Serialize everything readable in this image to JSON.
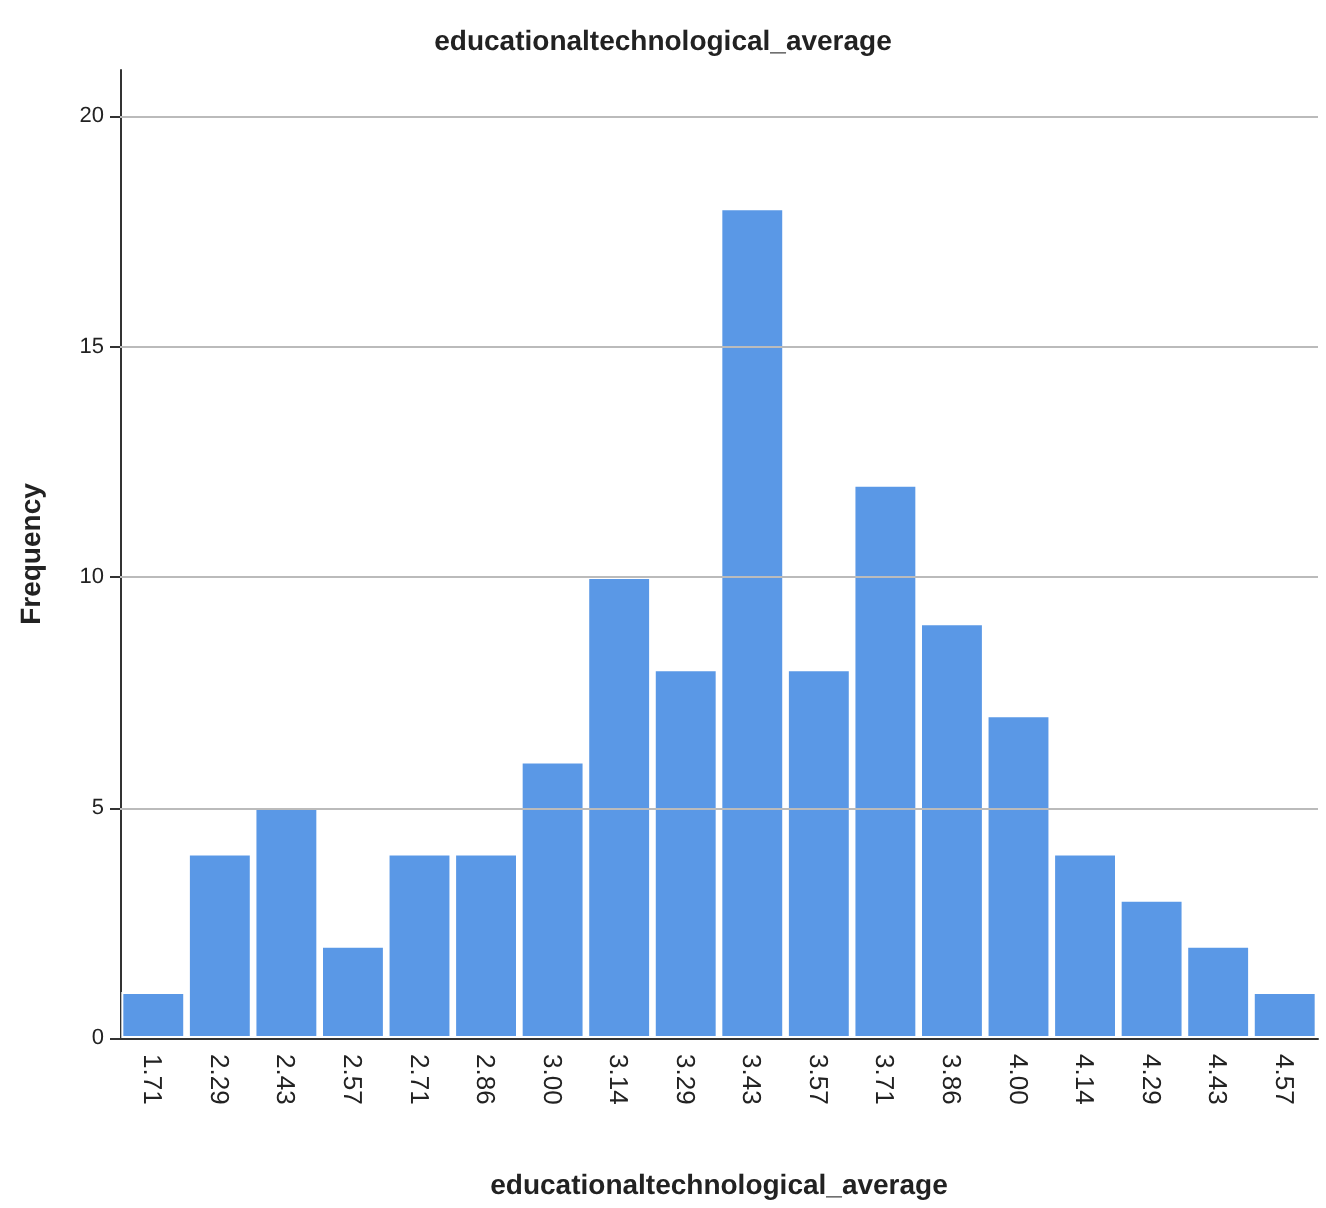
{
  "chart_data": {
    "type": "bar",
    "title": "educationaltechnological_average",
    "xlabel": "educationaltechnological_average",
    "ylabel": "Frequency",
    "categories": [
      "1.71",
      "2.29",
      "2.43",
      "2.57",
      "2.71",
      "2.86",
      "3.00",
      "3.14",
      "3.29",
      "3.43",
      "3.57",
      "3.71",
      "3.86",
      "4.00",
      "4.14",
      "4.29",
      "4.43",
      "4.57"
    ],
    "values": [
      1,
      4,
      5,
      2,
      4,
      4,
      6,
      10,
      8,
      18,
      8,
      12,
      9,
      7,
      4,
      3,
      2,
      1
    ],
    "color": "#5a98e6",
    "ylim": [
      0,
      21
    ],
    "yticks": [
      0,
      5,
      10,
      15,
      20
    ],
    "grid": "y"
  }
}
